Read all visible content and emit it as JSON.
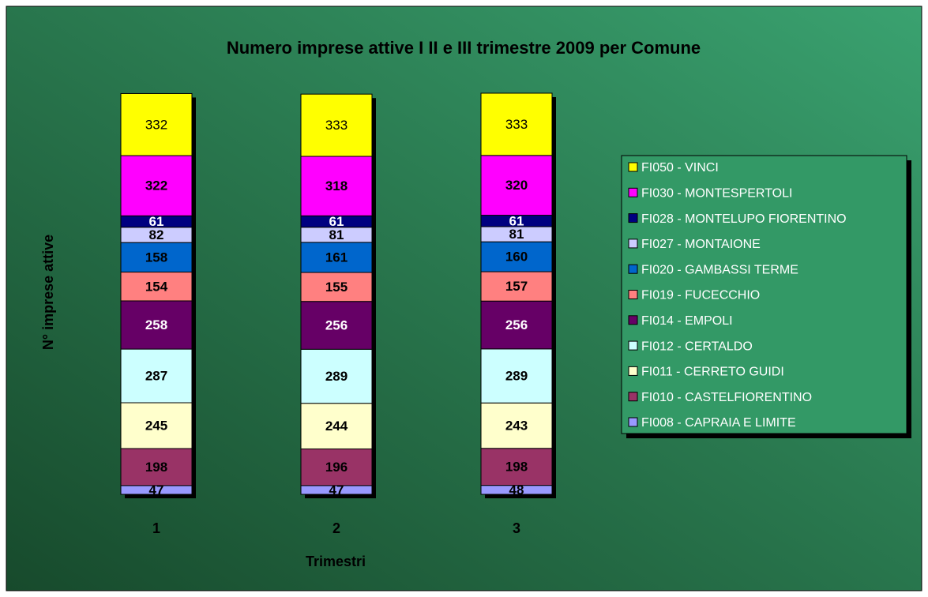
{
  "chart_data": {
    "type": "bar",
    "stacked": true,
    "title": "Numero imprese attive I II e III trimestre 2009 per Comune",
    "x_label": "Trimestri",
    "y_label": "N° imprese attive",
    "categories": [
      "1",
      "2",
      "3"
    ],
    "series": [
      {
        "name": "FI008 - CAPRAIA E LIMITE",
        "color": "#9999ff",
        "values": [
          47,
          47,
          48
        ]
      },
      {
        "name": "FI010 - CASTELFIORENTINO",
        "color": "#993366",
        "values": [
          198,
          196,
          198
        ]
      },
      {
        "name": "FI011 - CERRETO GUIDI",
        "color": "#ffffcc",
        "values": [
          245,
          244,
          243
        ]
      },
      {
        "name": "FI012 - CERTALDO",
        "color": "#ccffff",
        "values": [
          287,
          289,
          289
        ]
      },
      {
        "name": "FI014 - EMPOLI",
        "color": "#660066",
        "values": [
          258,
          256,
          256
        ]
      },
      {
        "name": "FI019 - FUCECCHIO",
        "color": "#ff8080",
        "values": [
          154,
          155,
          157
        ]
      },
      {
        "name": "FI020 - GAMBASSI TERME",
        "color": "#0066cc",
        "values": [
          158,
          161,
          160
        ]
      },
      {
        "name": "FI027 - MONTAIONE",
        "color": "#ccccff",
        "values": [
          82,
          81,
          81
        ]
      },
      {
        "name": "FI028 - MONTELUPO FIORENTINO",
        "color": "#000080",
        "values": [
          61,
          61,
          61
        ]
      },
      {
        "name": "FI030 - MONTESPERTOLI",
        "color": "#ff00ff",
        "values": [
          322,
          318,
          320
        ]
      },
      {
        "name": "FI050 - VINCI",
        "color": "#ffff00",
        "values": [
          332,
          333,
          333
        ]
      }
    ],
    "legend": "right"
  }
}
